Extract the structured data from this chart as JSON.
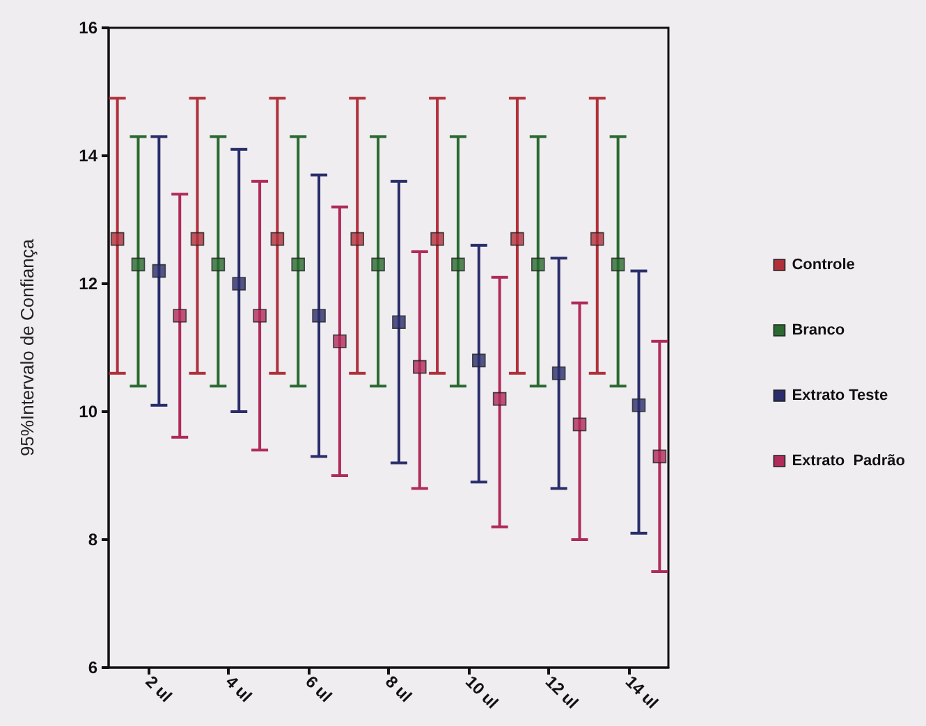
{
  "chart_data": {
    "type": "scatter",
    "ylabel": "95%Intervalo de Confiança",
    "categories": [
      "2 ul",
      "4 ul",
      "6 ul",
      "8 ul",
      "10 ul",
      "12 ul",
      "14 ul"
    ],
    "ylim": [
      6,
      16
    ],
    "yticks": [
      6,
      8,
      10,
      12,
      14,
      16
    ],
    "marker": "square",
    "legend": "right",
    "series": [
      {
        "name": "Controle",
        "color": "#b0303a",
        "values": [
          12.7,
          12.7,
          12.7,
          12.7,
          12.7,
          12.7,
          12.7
        ],
        "errors": [
          [
            10.6,
            14.9
          ],
          [
            10.6,
            14.9
          ],
          [
            10.6,
            14.9
          ],
          [
            10.6,
            14.9
          ],
          [
            10.6,
            14.9
          ],
          [
            10.6,
            14.9
          ],
          [
            10.6,
            14.9
          ]
        ]
      },
      {
        "name": "Branco",
        "color": "#2a6a30",
        "values": [
          12.3,
          12.3,
          12.3,
          12.3,
          12.3,
          12.3,
          12.3
        ],
        "errors": [
          [
            10.4,
            14.3
          ],
          [
            10.4,
            14.3
          ],
          [
            10.4,
            14.3
          ],
          [
            10.4,
            14.3
          ],
          [
            10.4,
            14.3
          ],
          [
            10.4,
            14.3
          ],
          [
            10.4,
            14.3
          ]
        ]
      },
      {
        "name": "Extrato Teste",
        "color": "#2a2d6a",
        "values": [
          12.2,
          12.0,
          11.5,
          11.4,
          10.8,
          10.6,
          10.1
        ],
        "errors": [
          [
            10.1,
            14.3
          ],
          [
            10.0,
            14.1
          ],
          [
            9.3,
            13.7
          ],
          [
            9.2,
            13.6
          ],
          [
            8.9,
            12.6
          ],
          [
            8.8,
            12.4
          ],
          [
            8.1,
            12.2
          ]
        ]
      },
      {
        "name": "Extrato  Padrão",
        "color": "#b02a5a",
        "values": [
          11.5,
          11.5,
          11.1,
          10.7,
          10.2,
          9.8,
          9.3
        ],
        "errors": [
          [
            9.6,
            13.4
          ],
          [
            9.4,
            13.6
          ],
          [
            9.0,
            13.2
          ],
          [
            8.8,
            12.5
          ],
          [
            8.2,
            12.1
          ],
          [
            8.0,
            11.7
          ],
          [
            7.5,
            11.1
          ]
        ]
      }
    ]
  }
}
